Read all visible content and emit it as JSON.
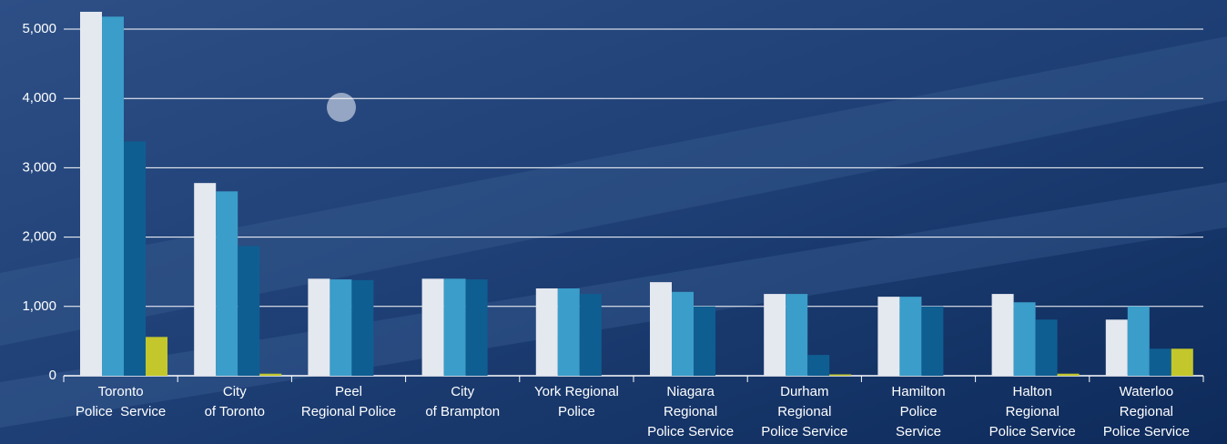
{
  "chart_data": {
    "type": "bar",
    "categories": [
      [
        "Toronto",
        "Police  Service"
      ],
      [
        "City",
        "of Toronto"
      ],
      [
        "Peel",
        "Regional Police"
      ],
      [
        "City",
        "of Brampton"
      ],
      [
        "York Regional",
        "Police"
      ],
      [
        "Niagara",
        "Regional",
        "Police Service"
      ],
      [
        "Durham",
        "Regional",
        "Police Service"
      ],
      [
        "Hamilton",
        "Police",
        "Service"
      ],
      [
        "Halton",
        "Regional",
        "Police Service"
      ],
      [
        "Waterloo",
        "Regional",
        "Police Service"
      ]
    ],
    "series": [
      {
        "color": "#e4e8ef",
        "values": [
          5250,
          2780,
          1400,
          1400,
          1260,
          1350,
          1180,
          1140,
          1180,
          810
        ]
      },
      {
        "color": "#3b9dc9",
        "values": [
          5180,
          2660,
          1390,
          1400,
          1260,
          1210,
          1180,
          1140,
          1060,
          1000
        ]
      },
      {
        "color": "#0f5e92",
        "values": [
          3380,
          1870,
          1380,
          1390,
          1180,
          1000,
          300,
          1000,
          810,
          390
        ]
      },
      {
        "color": "#c3c72c",
        "values": [
          560,
          30,
          0,
          0,
          0,
          0,
          20,
          0,
          30,
          390
        ]
      }
    ],
    "ylim": [
      0,
      5420
    ],
    "yticks": [
      0,
      {
        "value": 1000,
        "label": "1,000"
      },
      {
        "value": 2000,
        "label": "2,000"
      },
      {
        "value": 3000,
        "label": "3,000"
      },
      {
        "value": 4000,
        "label": "4,000"
      },
      {
        "value": 5000,
        "label": "5,000"
      }
    ],
    "grid": true
  }
}
